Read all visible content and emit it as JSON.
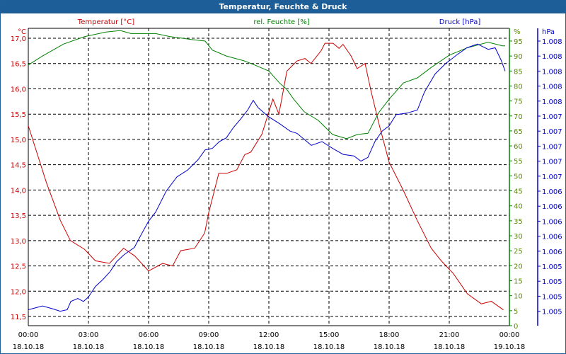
{
  "window": {
    "title": "Temperatur, Feuchte & Druck"
  },
  "colors": {
    "temperature": "#cc0000",
    "humidity": "#008000",
    "pressure": "#0000cc",
    "titlebar": "#1d5e98"
  },
  "chart_data": {
    "type": "line",
    "title": "Temperatur, Feuchte & Druck",
    "xlabel": "",
    "xlim": [
      0,
      24
    ],
    "x_ticks": [
      {
        "time": "00:00",
        "date": "18.10.18"
      },
      {
        "time": "03:00",
        "date": "18.10.18"
      },
      {
        "time": "06:00",
        "date": "18.10.18"
      },
      {
        "time": "09:00",
        "date": "18.10.18"
      },
      {
        "time": "12:00",
        "date": "18.10.18"
      },
      {
        "time": "15:00",
        "date": "18.10.18"
      },
      {
        "time": "18:00",
        "date": "18.10.18"
      },
      {
        "time": "21:00",
        "date": "18.10.18"
      },
      {
        "time": "00:00",
        "date": "19.10.18"
      }
    ],
    "axes": {
      "temperature": {
        "label": "Temperatur [°C]",
        "unit": "°C",
        "ylim": [
          11.5,
          17.0
        ],
        "ticks": [
          "17,0",
          "16,5",
          "16,0",
          "15,5",
          "15,0",
          "14,5",
          "14,0",
          "13,5",
          "13,0",
          "12,5",
          "12,0",
          "11,5"
        ]
      },
      "humidity": {
        "label": "rel. Feuchte [%]",
        "unit": "%",
        "ylim": [
          0,
          95
        ],
        "ticks": [
          "95",
          "90",
          "85",
          "80",
          "75",
          "70",
          "65",
          "60",
          "55",
          "50",
          "45",
          "40",
          "35",
          "30",
          "25",
          "20",
          "15",
          "10",
          "5",
          "0"
        ]
      },
      "pressure": {
        "label": "Druck [hPa]",
        "unit": "hPa",
        "ylim": [
          1.0048,
          1.0084
        ],
        "ticks": [
          "1.008",
          "1.008",
          "1.008",
          "1.008",
          "1.008",
          "1.007",
          "1.007",
          "1.007",
          "1.007",
          "1.007",
          "1.006",
          "1.006",
          "1.006",
          "1.006",
          "1.006",
          "1.005",
          "1.005",
          "1.005",
          "1.005"
        ]
      }
    },
    "grid": true,
    "series": [
      {
        "name": "Temperatur [°C]",
        "axis": "temperature",
        "points": [
          [
            0,
            15.27
          ],
          [
            0.9,
            14.15
          ],
          [
            1.6,
            13.4
          ],
          [
            2.1,
            13.0
          ],
          [
            2.8,
            12.83
          ],
          [
            3.35,
            12.6
          ],
          [
            4.05,
            12.55
          ],
          [
            4.75,
            12.85
          ],
          [
            5.3,
            12.7
          ],
          [
            6,
            12.4
          ],
          [
            6.7,
            12.55
          ],
          [
            7.2,
            12.5
          ],
          [
            7.6,
            12.8
          ],
          [
            8.3,
            12.85
          ],
          [
            8.8,
            13.15
          ],
          [
            9,
            13.55
          ],
          [
            9.5,
            14.33
          ],
          [
            9.9,
            14.33
          ],
          [
            10.4,
            14.4
          ],
          [
            10.8,
            14.7
          ],
          [
            11.1,
            14.75
          ],
          [
            11.65,
            15.1
          ],
          [
            12.2,
            15.8
          ],
          [
            12.5,
            15.5
          ],
          [
            12.9,
            16.35
          ],
          [
            13.4,
            16.55
          ],
          [
            13.8,
            16.6
          ],
          [
            14.1,
            16.5
          ],
          [
            14.6,
            16.75
          ],
          [
            14.8,
            16.9
          ],
          [
            15.2,
            16.9
          ],
          [
            15.5,
            16.8
          ],
          [
            15.7,
            16.88
          ],
          [
            16.1,
            16.65
          ],
          [
            16.4,
            16.4
          ],
          [
            16.8,
            16.5
          ],
          [
            17.1,
            15.95
          ],
          [
            17.5,
            15.3
          ],
          [
            18,
            14.55
          ],
          [
            18.7,
            14.0
          ],
          [
            19.4,
            13.4
          ],
          [
            20.1,
            12.85
          ],
          [
            20.6,
            12.6
          ],
          [
            21.2,
            12.35
          ],
          [
            21.9,
            11.95
          ],
          [
            22.6,
            11.75
          ],
          [
            23.1,
            11.8
          ],
          [
            23.7,
            11.63
          ]
        ]
      },
      {
        "name": "rel. Feuchte [%]",
        "axis": "humidity",
        "points": [
          [
            0,
            87
          ],
          [
            0.71,
            90
          ],
          [
            1.76,
            94
          ],
          [
            2.82,
            96.5
          ],
          [
            3.88,
            98
          ],
          [
            4.59,
            98.5
          ],
          [
            5.12,
            97.5
          ],
          [
            6.35,
            97.5
          ],
          [
            7.06,
            96.5
          ],
          [
            8.12,
            95.5
          ],
          [
            8.82,
            95
          ],
          [
            9.18,
            92
          ],
          [
            9.88,
            90
          ],
          [
            10.76,
            88.4
          ],
          [
            11.29,
            87
          ],
          [
            12,
            85
          ],
          [
            12.53,
            81
          ],
          [
            12.88,
            79
          ],
          [
            13.24,
            75.6
          ],
          [
            13.76,
            71.4
          ],
          [
            14.47,
            68.5
          ],
          [
            15.18,
            63.8
          ],
          [
            15.88,
            62.4
          ],
          [
            16.41,
            63.8
          ],
          [
            16.94,
            64.2
          ],
          [
            17.47,
            71
          ],
          [
            18,
            75.6
          ],
          [
            18.71,
            81
          ],
          [
            19.41,
            82.7
          ],
          [
            20.12,
            86.3
          ],
          [
            21,
            90.3
          ],
          [
            21.88,
            92.7
          ],
          [
            22.94,
            94.6
          ],
          [
            23.65,
            93.4
          ],
          [
            23.79,
            93.4
          ]
        ]
      },
      {
        "name": "Druck [hPa]",
        "axis": "pressure",
        "points": [
          [
            0,
            1.00482
          ],
          [
            0.71,
            1.00487
          ],
          [
            1.24,
            1.00483
          ],
          [
            1.59,
            1.0048
          ],
          [
            1.94,
            1.00482
          ],
          [
            2.12,
            1.00493
          ],
          [
            2.47,
            1.00497
          ],
          [
            2.75,
            1.00493
          ],
          [
            3,
            1.00499
          ],
          [
            3.35,
            1.00513
          ],
          [
            3.71,
            1.00522
          ],
          [
            4.06,
            1.00532
          ],
          [
            4.41,
            1.00546
          ],
          [
            4.76,
            1.00555
          ],
          [
            5.29,
            1.00565
          ],
          [
            5.65,
            1.00583
          ],
          [
            6,
            1.006
          ],
          [
            6.35,
            1.00612
          ],
          [
            6.88,
            1.0064
          ],
          [
            7.41,
            1.00659
          ],
          [
            7.94,
            1.00668
          ],
          [
            8.47,
            1.00682
          ],
          [
            8.82,
            1.00695
          ],
          [
            9.18,
            1.00697
          ],
          [
            9.53,
            1.00706
          ],
          [
            9.88,
            1.00711
          ],
          [
            10.24,
            1.00725
          ],
          [
            10.59,
            1.00736
          ],
          [
            10.94,
            1.00748
          ],
          [
            11.22,
            1.00761
          ],
          [
            11.47,
            1.00751
          ],
          [
            12,
            1.00739
          ],
          [
            12.53,
            1.0073
          ],
          [
            13.06,
            1.0072
          ],
          [
            13.41,
            1.00717
          ],
          [
            14.12,
            1.00701
          ],
          [
            14.65,
            1.00706
          ],
          [
            15.18,
            1.00697
          ],
          [
            15.71,
            1.00689
          ],
          [
            16.24,
            1.00687
          ],
          [
            16.59,
            1.0068
          ],
          [
            16.94,
            1.00685
          ],
          [
            17.29,
            1.00706
          ],
          [
            17.65,
            1.0072
          ],
          [
            18,
            1.00727
          ],
          [
            18.35,
            1.00742
          ],
          [
            18.88,
            1.00744
          ],
          [
            19.41,
            1.00748
          ],
          [
            19.76,
            1.00772
          ],
          [
            20.29,
            1.00796
          ],
          [
            20.82,
            1.0081
          ],
          [
            21.35,
            1.00821
          ],
          [
            21.88,
            1.00831
          ],
          [
            22.41,
            1.00836
          ],
          [
            22.94,
            1.00829
          ],
          [
            23.29,
            1.00831
          ],
          [
            23.58,
            1.00815
          ],
          [
            23.79,
            1.008
          ]
        ]
      }
    ]
  }
}
